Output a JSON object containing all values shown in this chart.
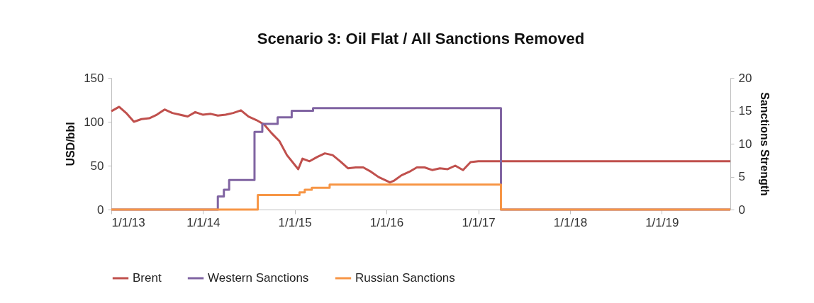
{
  "chart_data": {
    "type": "line",
    "title": "Scenario 3: Oil Flat / All Sanctions Removed",
    "ylabel": "USD/bbl",
    "y2label": "Sanctions Strength",
    "xlim": [
      "2013-01-01",
      "2019-10-01"
    ],
    "xticks": [
      {
        "value": "2013-01-01",
        "label": "1/1/13"
      },
      {
        "value": "2014-01-01",
        "label": "1/1/14"
      },
      {
        "value": "2015-01-01",
        "label": "1/1/15"
      },
      {
        "value": "2016-01-01",
        "label": "1/1/16"
      },
      {
        "value": "2017-01-01",
        "label": "1/1/17"
      },
      {
        "value": "2018-01-01",
        "label": "1/1/18"
      },
      {
        "value": "2019-01-01",
        "label": "1/1/19"
      }
    ],
    "ylim": [
      0,
      150
    ],
    "yticks": [
      0,
      50,
      100,
      150
    ],
    "y2lim": [
      0,
      20
    ],
    "y2ticks": [
      0,
      5,
      10,
      15,
      20
    ],
    "grid": false,
    "legend": "bottom",
    "line_style": "solid",
    "marker": "none",
    "series": [
      {
        "name": "Brent",
        "color": "#c0504d",
        "x": [
          "2013-01-01",
          "2013-02-01",
          "2013-03-01",
          "2013-04-01",
          "2013-05-01",
          "2013-06-01",
          "2013-07-01",
          "2013-08-01",
          "2013-09-01",
          "2013-10-01",
          "2013-11-01",
          "2013-12-01",
          "2014-01-01",
          "2014-02-01",
          "2014-03-01",
          "2014-04-01",
          "2014-05-01",
          "2014-06-01",
          "2014-07-01",
          "2014-08-01",
          "2014-09-01",
          "2014-10-01",
          "2014-11-01",
          "2014-12-01",
          "2015-01-15",
          "2015-02-01",
          "2015-03-01",
          "2015-04-01",
          "2015-05-01",
          "2015-06-01",
          "2015-07-01",
          "2015-08-01",
          "2015-09-01",
          "2015-10-01",
          "2015-11-01",
          "2015-12-01",
          "2016-01-15",
          "2016-02-01",
          "2016-03-01",
          "2016-04-01",
          "2016-05-01",
          "2016-06-01",
          "2016-07-01",
          "2016-08-01",
          "2016-09-01",
          "2016-10-01",
          "2016-11-01",
          "2016-12-01",
          "2017-01-01",
          "2019-10-01"
        ],
        "values": [
          112,
          117,
          110,
          100,
          103,
          104,
          108,
          114,
          110,
          108,
          106,
          111,
          108,
          109,
          107,
          108,
          110,
          113,
          106,
          102,
          97,
          87,
          78,
          62,
          46,
          58,
          55,
          60,
          64,
          62,
          55,
          47,
          48,
          48,
          43,
          37,
          31,
          33,
          39,
          43,
          48,
          48,
          45,
          47,
          46,
          50,
          45,
          54,
          55,
          55
        ]
      },
      {
        "name": "Western Sanctions",
        "color": "#8064a2",
        "type": "step",
        "axis": "y2",
        "x": [
          "2013-01-01",
          "2014-02-20",
          "2014-03-01",
          "2014-03-25",
          "2014-04-15",
          "2014-07-25",
          "2014-08-25",
          "2014-10-25",
          "2014-12-20",
          "2015-03-15",
          "2017-04-01",
          "2019-10-01"
        ],
        "values": [
          0,
          0,
          2,
          3,
          4.5,
          11.8,
          13,
          14,
          15,
          15.4,
          0,
          0
        ]
      },
      {
        "name": "Russian Sanctions",
        "color": "#f79646",
        "type": "step",
        "axis": "y2",
        "x": [
          "2013-01-01",
          "2014-08-07",
          "2015-01-20",
          "2015-02-10",
          "2015-03-10",
          "2015-05-20",
          "2017-04-01",
          "2019-10-01"
        ],
        "values": [
          0,
          2.2,
          2.6,
          3.0,
          3.3,
          3.8,
          0,
          0
        ]
      }
    ]
  }
}
